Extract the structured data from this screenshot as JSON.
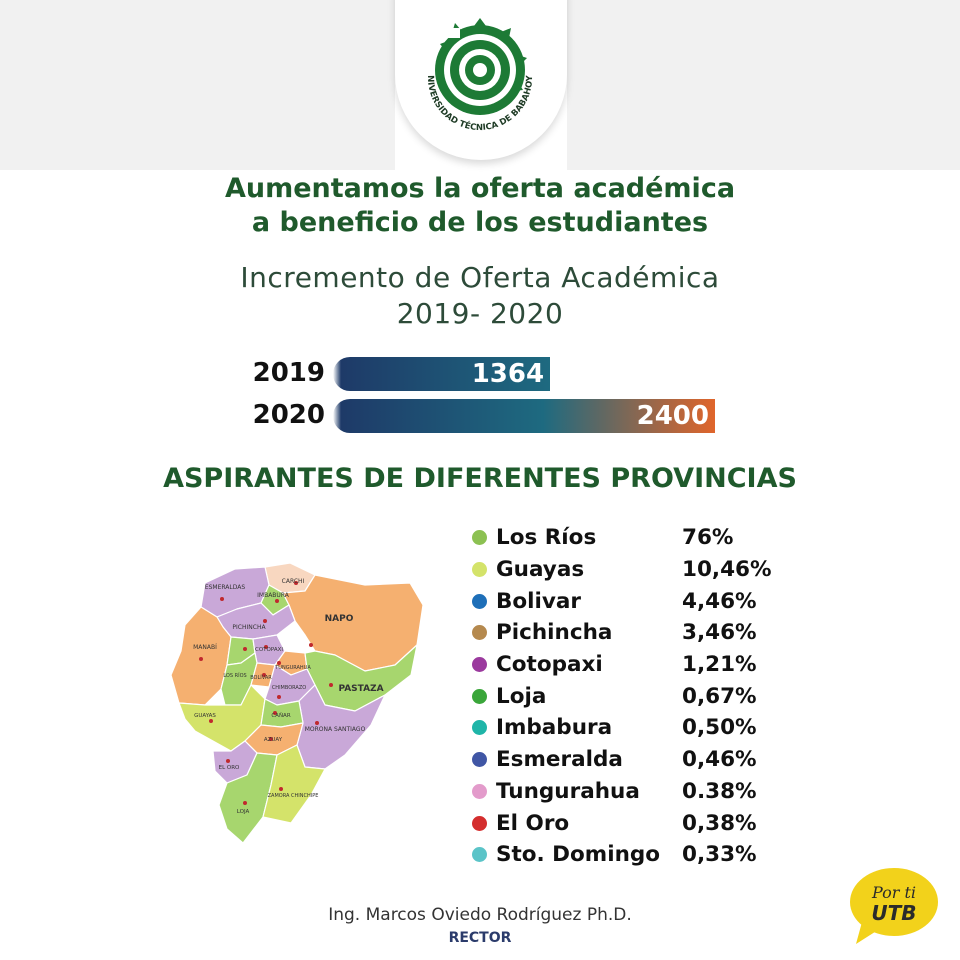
{
  "logo": {
    "ring_text": "UNIVERSIDAD TÉCNICA DE BABAHOYO",
    "color": "#1d7a35"
  },
  "headline": {
    "line1": "Aumentamos la oferta académica",
    "line2": "a beneficio de los estudiantes"
  },
  "chart_data": [
    {
      "type": "bar",
      "orientation": "horizontal",
      "title": "Incremento de Oferta Académica",
      "subtitle": "2019- 2020",
      "categories": [
        "2019",
        "2020"
      ],
      "values": [
        1364,
        2400
      ],
      "xlim": [
        0,
        2400
      ]
    },
    {
      "type": "table",
      "title": "ASPIRANTES DE DIFERENTES PROVINCIAS",
      "rows": [
        {
          "name": "Los Ríos",
          "pct": "76%",
          "value": 76,
          "color": "#8cc152"
        },
        {
          "name": "Guayas",
          "pct": "10,46%",
          "value": 10.46,
          "color": "#d4e36a"
        },
        {
          "name": "Bolivar",
          "pct": "4,46%",
          "value": 4.46,
          "color": "#1e6fb8"
        },
        {
          "name": "Pichincha",
          "pct": "3,46%",
          "value": 3.46,
          "color": "#b5894e"
        },
        {
          "name": "Cotopaxi",
          "pct": "1,21%",
          "value": 1.21,
          "color": "#9b3a9e"
        },
        {
          "name": "Loja",
          "pct": "0,67%",
          "value": 0.67,
          "color": "#3aa63a"
        },
        {
          "name": "Imbabura",
          "pct": "0,50%",
          "value": 0.5,
          "color": "#1fb5a8"
        },
        {
          "name": "Esmeralda",
          "pct": "0,46%",
          "value": 0.46,
          "color": "#4056a5"
        },
        {
          "name": "Tungurahua",
          "pct": "0.38%",
          "value": 0.38,
          "color": "#e39bcb"
        },
        {
          "name": "El Oro",
          "pct": "0,38%",
          "value": 0.38,
          "color": "#d42e2e"
        },
        {
          "name": "Sto. Domingo",
          "pct": "0,33%",
          "value": 0.33,
          "color": "#5bc4c8"
        }
      ]
    }
  ],
  "map": {
    "labels": {
      "carchi": "CARCHI",
      "esmeraldas": "ESMERALDAS",
      "imbabura": "IMBABURA",
      "pichincha": "PICHINCHA",
      "napo": "NAPO",
      "manabi": "MANABÍ",
      "cotopaxi": "COTOPAXI",
      "tungurahua": "TUNGURAHUA",
      "los_rios": "LOS\nRÍOS",
      "bolivar": "BOLÍVAR",
      "pastaza": "PASTAZA",
      "chimborazo": "CHIMBORAZO",
      "guayas": "GUAYAS",
      "morona": "MORONA\nSANTIAGO",
      "canar": "CAÑAR",
      "azuay": "AZUAY",
      "el_oro": "EL ORO",
      "loja": "LOJA",
      "zamora": "ZAMORA\nCHINCHIPE"
    }
  },
  "signature": {
    "name": "Ing. Marcos Oviedo Rodríguez Ph.D.",
    "role": "RECTOR"
  },
  "badge": {
    "line1": "Por ti",
    "line2": "UTB",
    "color": "#f2d21b"
  },
  "colors": {
    "title_green": "#1f5a2c",
    "bar_start": "#1e3a68",
    "bar_mid": "#1e6a80",
    "bar_end": "#e0652b"
  }
}
